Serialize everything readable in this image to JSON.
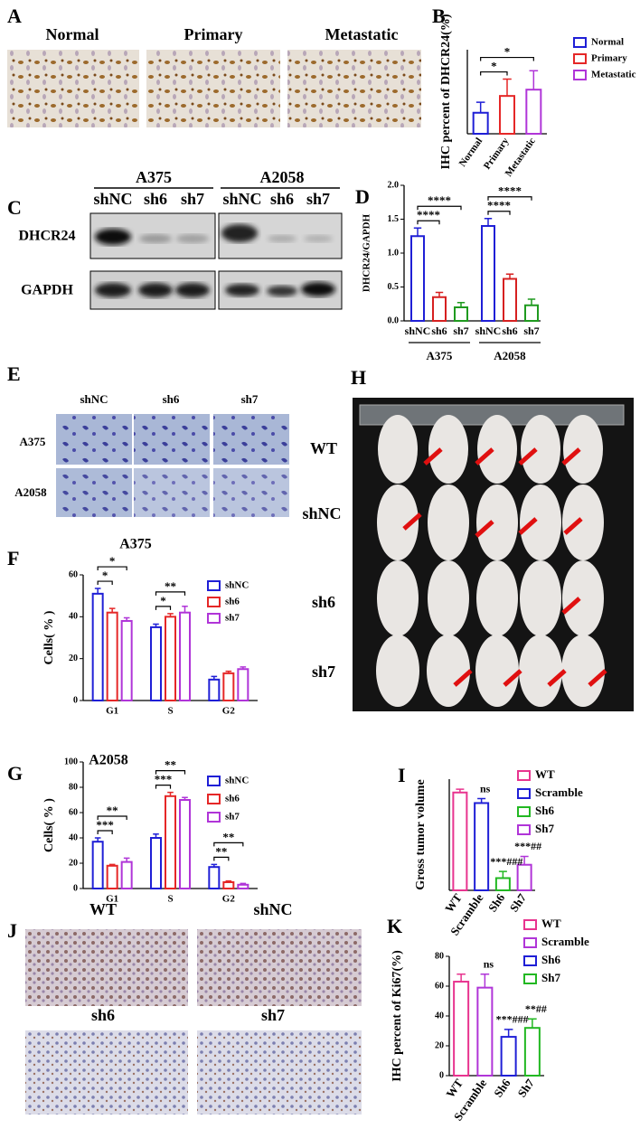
{
  "figure": {
    "panel_labels": [
      "A",
      "C",
      "E",
      "H",
      "J"
    ],
    "ihc_labels": [
      "Normal",
      "Primary",
      "Metastatic"
    ],
    "blot": {
      "cell_lines": [
        "A375",
        "A2058"
      ],
      "lanes": [
        "shNC",
        "sh6",
        "sh7",
        "shNC",
        "sh6",
        "sh7"
      ],
      "proteins": [
        "DHCR24",
        "GAPDH"
      ]
    },
    "transwell": {
      "columns": [
        "shNC",
        "sh6",
        "sh7"
      ],
      "rows": [
        "A375",
        "A2058"
      ]
    },
    "mice_rows": [
      "WT",
      "shNC",
      "sh6",
      "sh7"
    ],
    "ki67_labels": [
      "WT",
      "shNC",
      "sh6",
      "sh7"
    ]
  },
  "chart_data": [
    {
      "type": "bar",
      "panel": "B",
      "y_label": "IHC percent of DHCR24(%)",
      "categories": [
        "Normal",
        "Primary",
        "Metastatic"
      ],
      "values": [
        20,
        36,
        42
      ],
      "errors": [
        10,
        16,
        18
      ],
      "colors": [
        "#1f1fd6",
        "#e52727",
        "#b035d8"
      ],
      "ylim": [
        0,
        80
      ],
      "significance": [
        {
          "between": [
            0,
            1
          ],
          "text": "*"
        },
        {
          "between": [
            0,
            2
          ],
          "text": "*"
        }
      ]
    },
    {
      "type": "bar",
      "panel": "D",
      "y_label": "DHCR24/GAPDH",
      "categories": [
        "shNC",
        "sh6",
        "sh7",
        "shNC",
        "sh6",
        "sh7"
      ],
      "group_labels": [
        "A375",
        "A2058"
      ],
      "values": [
        1.25,
        0.35,
        0.2,
        1.4,
        0.62,
        0.23
      ],
      "errors": [
        0.12,
        0.07,
        0.07,
        0.11,
        0.07,
        0.09
      ],
      "colors": [
        "#1f1fd6",
        "#d62020",
        "#1f9a1f",
        "#1f1fd6",
        "#d62020",
        "#1f9a1f"
      ],
      "ylim": [
        0,
        2
      ],
      "yticks": [
        {
          "value": 0,
          "label": "0.0"
        },
        0.5,
        {
          "value": 1,
          "label": "1.0"
        },
        1.5,
        {
          "value": 2,
          "label": "2.0"
        }
      ],
      "significance": [
        {
          "between": [
            0,
            1
          ],
          "text": "****"
        },
        {
          "between": [
            0,
            2
          ],
          "text": "****"
        },
        {
          "between": [
            3,
            4
          ],
          "text": "****"
        },
        {
          "between": [
            3,
            5
          ],
          "text": "****"
        }
      ]
    },
    {
      "type": "grouped_bar",
      "panel": "F",
      "title": "A375",
      "y_label": "Cells( % )",
      "categories": [
        "G1",
        "S",
        "G2"
      ],
      "series": [
        {
          "name": "shNC",
          "color": "#1f1fd6",
          "values": [
            51,
            35,
            10
          ],
          "errors": [
            2.5,
            1.5,
            1.5
          ]
        },
        {
          "name": "sh6",
          "color": "#e52727",
          "values": [
            42,
            40,
            13
          ],
          "errors": [
            2,
            1.5,
            1
          ]
        },
        {
          "name": "sh7",
          "color": "#b035d8",
          "values": [
            38,
            42,
            15
          ],
          "errors": [
            1.5,
            3,
            1
          ]
        }
      ],
      "ylim": [
        0,
        60
      ],
      "yticks": [
        0,
        20,
        40,
        60
      ],
      "significance": [
        {
          "category": 0,
          "between": [
            0,
            1
          ],
          "text": "*"
        },
        {
          "category": 0,
          "between": [
            0,
            2
          ],
          "text": "*"
        },
        {
          "category": 1,
          "between": [
            0,
            1
          ],
          "text": "*"
        },
        {
          "category": 1,
          "between": [
            0,
            2
          ],
          "text": "**"
        }
      ]
    },
    {
      "type": "grouped_bar",
      "panel": "G",
      "title": "A2058",
      "y_label": "Cells( % )",
      "categories": [
        "G1",
        "S",
        "G2"
      ],
      "series": [
        {
          "name": "shNC",
          "color": "#1f1fd6",
          "values": [
            37,
            40,
            17
          ],
          "errors": [
            3,
            3,
            2
          ]
        },
        {
          "name": "sh6",
          "color": "#e52727",
          "values": [
            18,
            73,
            5
          ],
          "errors": [
            1,
            3,
            1
          ]
        },
        {
          "name": "sh7",
          "color": "#b035d8",
          "values": [
            21,
            70,
            3
          ],
          "errors": [
            3,
            2,
            1
          ]
        }
      ],
      "ylim": [
        0,
        100
      ],
      "yticks": [
        0,
        20,
        40,
        60,
        80,
        100
      ],
      "significance": [
        {
          "category": 0,
          "between": [
            0,
            1
          ],
          "text": "***"
        },
        {
          "category": 0,
          "between": [
            0,
            2
          ],
          "text": "**"
        },
        {
          "category": 1,
          "between": [
            0,
            1
          ],
          "text": "***"
        },
        {
          "category": 1,
          "between": [
            0,
            2
          ],
          "text": "**"
        },
        {
          "category": 2,
          "between": [
            0,
            1
          ],
          "text": "**"
        },
        {
          "category": 2,
          "between": [
            0,
            2
          ],
          "text": "**"
        }
      ]
    },
    {
      "type": "bar",
      "panel": "I",
      "y_label": "Gross tumor volume",
      "categories": [
        "WT",
        "Scramble",
        "Sh6",
        "Sh7"
      ],
      "values": [
        176,
        157,
        22,
        46
      ],
      "errors": [
        6,
        8,
        12,
        15
      ],
      "colors": [
        "#e8348f",
        "#1f1fd6",
        "#22b822",
        "#b035d8"
      ],
      "ylim": [
        0,
        200
      ],
      "annotations": [
        {
          "index": 1,
          "text": "ns"
        },
        {
          "index": 2,
          "text": "***###"
        },
        {
          "index": 3,
          "text": "***##"
        }
      ]
    },
    {
      "type": "bar",
      "panel": "K",
      "y_label": "IHC percent of Ki67(%)",
      "categories": [
        "WT",
        "Scramble",
        "Sh6",
        "Sh7"
      ],
      "values": [
        63,
        59,
        26,
        32
      ],
      "errors": [
        5,
        9,
        5,
        6
      ],
      "colors": [
        "#e8348f",
        "#b035d8",
        "#1f1fd6",
        "#22b822"
      ],
      "ylim": [
        0,
        80
      ],
      "yticks": [
        0,
        20,
        40,
        60,
        80
      ],
      "annotations": [
        {
          "index": 1,
          "text": "ns"
        },
        {
          "index": 2,
          "text": "***###"
        },
        {
          "index": 3,
          "text": "**##"
        }
      ]
    }
  ]
}
